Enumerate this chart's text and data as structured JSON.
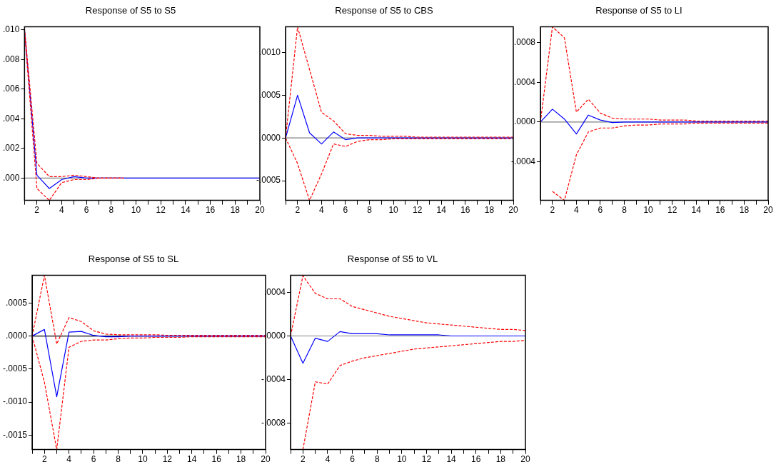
{
  "chart_data": [
    {
      "type": "line",
      "title": "Response of S5 to S5",
      "x": [
        1,
        2,
        3,
        4,
        5,
        6,
        7,
        8,
        9,
        10,
        11,
        12,
        13,
        14,
        15,
        16,
        17,
        18,
        19,
        20
      ],
      "xlim": [
        1,
        20
      ],
      "xticks": [
        {
          "value": 1,
          "label": null
        },
        2,
        {
          "value": 3,
          "label": null
        },
        4,
        {
          "value": 5,
          "label": null
        },
        6,
        {
          "value": 7,
          "label": null
        },
        8,
        {
          "value": 9,
          "label": null
        },
        10,
        {
          "value": 11,
          "label": null
        },
        12,
        {
          "value": 13,
          "label": null
        },
        14,
        {
          "value": 15,
          "label": null
        },
        16,
        {
          "value": 17,
          "label": null
        },
        18,
        {
          "value": 19,
          "label": null
        },
        20
      ],
      "ylim": [
        -0.0015,
        0.0102
      ],
      "yticks": [
        {
          "value": 0,
          "label": ".000"
        },
        {
          "value": 0.002,
          "label": ".002"
        },
        {
          "value": 0.004,
          "label": ".004"
        },
        {
          "value": 0.006,
          "label": ".006"
        },
        {
          "value": 0.008,
          "label": ".008"
        },
        {
          "value": 0.01,
          "label": ".010"
        }
      ],
      "grid": false,
      "marker": "none",
      "ref_lines": [
        {
          "axis": "y",
          "value": 0,
          "color": "#808080"
        }
      ],
      "series": [
        {
          "color": "#0000ff",
          "line_style": "solid",
          "values": [
            0.01,
            0.0002,
            -0.0007,
            -0.0001,
            0.0001,
            0,
            0,
            0,
            0,
            0,
            0,
            0,
            0,
            0,
            0,
            0,
            0,
            0,
            0,
            0
          ]
        },
        {
          "color": "#ff0000",
          "line_style": "dashed",
          "values": [
            0.0101,
            0.001,
            0.0001,
            0.0001,
            0.0002,
            0.0001,
            0,
            0,
            0,
            null,
            null,
            null,
            null,
            null,
            null,
            null,
            null,
            null,
            null,
            null
          ]
        },
        {
          "color": "#ff0000",
          "line_style": "dashed",
          "values": [
            0.0099,
            -0.0007,
            -0.0015,
            -0.0003,
            -0.0001,
            -0.0001,
            0,
            0,
            0,
            null,
            null,
            null,
            null,
            null,
            null,
            null,
            null,
            null,
            null,
            null
          ]
        }
      ]
    },
    {
      "type": "line",
      "title": "Response of S5 to CBS",
      "x": [
        1,
        2,
        3,
        4,
        5,
        6,
        7,
        8,
        9,
        10,
        11,
        12,
        13,
        14,
        15,
        16,
        17,
        18,
        19,
        20
      ],
      "xlim": [
        1,
        20
      ],
      "xticks": [
        {
          "value": 1,
          "label": null
        },
        2,
        {
          "value": 3,
          "label": null
        },
        4,
        {
          "value": 5,
          "label": null
        },
        6,
        {
          "value": 7,
          "label": null
        },
        8,
        {
          "value": 9,
          "label": null
        },
        10,
        {
          "value": 11,
          "label": null
        },
        12,
        {
          "value": 13,
          "label": null
        },
        14,
        {
          "value": 15,
          "label": null
        },
        16,
        {
          "value": 17,
          "label": null
        },
        18,
        {
          "value": 19,
          "label": null
        },
        20
      ],
      "ylim": [
        -0.00073,
        0.0013
      ],
      "yticks": [
        {
          "value": -0.0005,
          "label": "-.0005"
        },
        {
          "value": 0,
          "label": ".0000"
        },
        {
          "value": 0.0005,
          "label": ".0005"
        },
        {
          "value": 0.001,
          "label": ".0010"
        }
      ],
      "grid": false,
      "marker": "none",
      "ref_lines": [
        {
          "axis": "y",
          "value": 0,
          "color": "#808080"
        }
      ],
      "series": [
        {
          "color": "#0000ff",
          "line_style": "solid",
          "values": [
            0,
            0.0005,
            6e-05,
            -7e-05,
            7e-05,
            -2e-05,
            0,
            0,
            0,
            0,
            0,
            0,
            0,
            0,
            0,
            0,
            0,
            0,
            0,
            0
          ]
        },
        {
          "color": "#ff0000",
          "line_style": "dashed",
          "values": [
            0,
            0.0013,
            0.0008,
            0.0003,
            0.0002,
            5e-05,
            3e-05,
            3e-05,
            2e-05,
            2e-05,
            2e-05,
            1e-05,
            1e-05,
            1e-05,
            1e-05,
            1e-05,
            1e-05,
            1e-05,
            1e-05,
            1e-05
          ]
        },
        {
          "color": "#ff0000",
          "line_style": "dashed",
          "values": [
            0,
            -0.0003,
            -0.00073,
            -0.00042,
            -7e-05,
            -0.0001,
            -4e-05,
            -2e-05,
            -2e-05,
            -1e-05,
            -1e-05,
            -1e-05,
            -1e-05,
            -1e-05,
            -1e-05,
            -1e-05,
            -1e-05,
            -1e-05,
            -1e-05,
            -1e-05
          ]
        }
      ]
    },
    {
      "type": "line",
      "title": "Response of S5 to LI",
      "x": [
        1,
        2,
        3,
        4,
        5,
        6,
        7,
        8,
        9,
        10,
        11,
        12,
        13,
        14,
        15,
        16,
        17,
        18,
        19,
        20
      ],
      "xlim": [
        1,
        20
      ],
      "xticks": [
        {
          "value": 1,
          "label": null
        },
        2,
        {
          "value": 3,
          "label": null
        },
        4,
        {
          "value": 5,
          "label": null
        },
        6,
        {
          "value": 7,
          "label": null
        },
        8,
        {
          "value": 9,
          "label": null
        },
        10,
        {
          "value": 11,
          "label": null
        },
        12,
        {
          "value": 13,
          "label": null
        },
        14,
        {
          "value": 15,
          "label": null
        },
        16,
        {
          "value": 17,
          "label": null
        },
        18,
        {
          "value": 19,
          "label": null
        },
        20
      ],
      "ylim": [
        -0.00079,
        0.00096
      ],
      "yticks": [
        {
          "value": -0.0004,
          "label": "-.0004"
        },
        {
          "value": 0,
          "label": ".0000"
        },
        {
          "value": 0.0004,
          "label": ".0004"
        },
        {
          "value": 0.0008,
          "label": ".0008"
        }
      ],
      "grid": false,
      "marker": "none",
      "ref_lines": [
        {
          "axis": "y",
          "value": 0,
          "color": "#808080"
        }
      ],
      "series": [
        {
          "color": "#0000ff",
          "line_style": "solid",
          "values": [
            0,
            0.00013,
            3e-05,
            -0.00012,
            7e-05,
            2e-05,
            -5e-06,
            0,
            0,
            0,
            0,
            0,
            0,
            0,
            0,
            0,
            0,
            0,
            0,
            0
          ]
        },
        {
          "color": "#ff0000",
          "line_style": "dashed",
          "values": [
            0,
            0.00096,
            0.00085,
            0.0001,
            0.00023,
            9e-05,
            4e-05,
            3e-05,
            3e-05,
            3e-05,
            2e-05,
            2e-05,
            2e-05,
            1e-05,
            1e-05,
            1e-05,
            1e-05,
            1e-05,
            1e-05,
            1e-05
          ]
        },
        {
          "color": "#ff0000",
          "line_style": "dashed",
          "values": [
            null,
            -0.0007,
            -0.00079,
            -0.00033,
            -0.0001,
            -6e-05,
            -6e-05,
            -4e-05,
            -3e-05,
            -3e-05,
            -2e-05,
            -2e-05,
            -2e-05,
            -1e-05,
            -1e-05,
            -1e-05,
            -1e-05,
            -1e-05,
            -1e-05,
            -1e-05
          ]
        }
      ]
    },
    {
      "type": "line",
      "title": "Response of S5 to SL",
      "x": [
        1,
        2,
        3,
        4,
        5,
        6,
        7,
        8,
        9,
        10,
        11,
        12,
        13,
        14,
        15,
        16,
        17,
        18,
        19,
        20
      ],
      "xlim": [
        1,
        20
      ],
      "xticks": [
        {
          "value": 1,
          "label": null
        },
        2,
        {
          "value": 3,
          "label": null
        },
        4,
        {
          "value": 5,
          "label": null
        },
        6,
        {
          "value": 7,
          "label": null
        },
        8,
        {
          "value": 9,
          "label": null
        },
        10,
        {
          "value": 11,
          "label": null
        },
        12,
        {
          "value": 13,
          "label": null
        },
        14,
        {
          "value": 15,
          "label": null
        },
        16,
        {
          "value": 17,
          "label": null
        },
        18,
        {
          "value": 19,
          "label": null
        },
        20
      ],
      "ylim": [
        -0.00172,
        0.00092
      ],
      "yticks": [
        {
          "value": -0.0015,
          "label": "-.0015"
        },
        {
          "value": -0.001,
          "label": "-.0010"
        },
        {
          "value": -0.0005,
          "label": "-.0005"
        },
        {
          "value": 0,
          "label": ".0000"
        },
        {
          "value": 0.0005,
          "label": ".0005"
        }
      ],
      "grid": false,
      "marker": "none",
      "ref_lines": [
        {
          "axis": "y",
          "value": 0,
          "color": "#000000"
        }
      ],
      "series": [
        {
          "color": "#0000ff",
          "line_style": "solid",
          "values": [
            0,
            0.0001,
            -0.00092,
            6e-05,
            7e-05,
            1e-05,
            -1e-05,
            -1e-05,
            0,
            0,
            0,
            0,
            0,
            0,
            0,
            0,
            0,
            0,
            0,
            0
          ]
        },
        {
          "color": "#ff0000",
          "line_style": "dashed",
          "values": [
            0,
            0.00092,
            -0.00012,
            0.00028,
            0.00022,
            8e-05,
            3e-05,
            2e-05,
            2e-05,
            2e-05,
            2e-05,
            1e-05,
            1e-05,
            1e-05,
            1e-05,
            1e-05,
            1e-05,
            1e-05,
            1e-05,
            1e-05
          ]
        },
        {
          "color": "#ff0000",
          "line_style": "dashed",
          "values": [
            0,
            -0.0007,
            -0.00172,
            -0.00017,
            -8e-05,
            -6e-05,
            -6e-05,
            -4e-05,
            -3e-05,
            -3e-05,
            -2e-05,
            -2e-05,
            -2e-05,
            -1e-05,
            -1e-05,
            -1e-05,
            -1e-05,
            -1e-05,
            -1e-05,
            -1e-05
          ]
        }
      ]
    },
    {
      "type": "line",
      "title": "Response of S5 to VL",
      "x": [
        1,
        2,
        3,
        4,
        5,
        6,
        7,
        8,
        9,
        10,
        11,
        12,
        13,
        14,
        15,
        16,
        17,
        18,
        19,
        20
      ],
      "xlim": [
        1,
        20
      ],
      "xticks": [
        {
          "value": 1,
          "label": null
        },
        2,
        {
          "value": 3,
          "label": null
        },
        4,
        {
          "value": 5,
          "label": null
        },
        6,
        {
          "value": 7,
          "label": null
        },
        8,
        {
          "value": 9,
          "label": null
        },
        10,
        {
          "value": 11,
          "label": null
        },
        12,
        {
          "value": 13,
          "label": null
        },
        14,
        {
          "value": 15,
          "label": null
        },
        16,
        {
          "value": 17,
          "label": null
        },
        18,
        {
          "value": 19,
          "label": null
        },
        20
      ],
      "ylim": [
        -0.00104,
        0.000555
      ],
      "yticks": [
        {
          "value": -0.0008,
          "label": "-.0008"
        },
        {
          "value": -0.0004,
          "label": "-.0004"
        },
        {
          "value": 0,
          "label": ".0000"
        },
        {
          "value": 0.0004,
          "label": ".0004"
        }
      ],
      "grid": false,
      "marker": "none",
      "ref_lines": [
        {
          "axis": "y",
          "value": 0,
          "color": "#808080"
        }
      ],
      "series": [
        {
          "color": "#0000ff",
          "line_style": "solid",
          "values": [
            0,
            -0.00025,
            -2e-05,
            -5e-05,
            4e-05,
            2e-05,
            2e-05,
            2e-05,
            1e-05,
            1e-05,
            1e-05,
            1e-05,
            1e-05,
            0,
            0,
            0,
            0,
            0,
            0,
            0
          ]
        },
        {
          "color": "#ff0000",
          "line_style": "dashed",
          "values": [
            0,
            0.00055,
            0.00039,
            0.00034,
            0.00034,
            0.00027,
            0.00024,
            0.00021,
            0.00018,
            0.00016,
            0.00014,
            0.00012,
            0.00011,
            0.0001,
            9e-05,
            8e-05,
            7e-05,
            6e-05,
            6e-05,
            5e-05
          ]
        },
        {
          "color": "#ff0000",
          "line_style": "dashed",
          "values": [
            null,
            -0.00104,
            -0.00042,
            -0.00044,
            -0.00027,
            -0.00023,
            -0.0002,
            -0.00018,
            -0.00016,
            -0.00014,
            -0.00012,
            -0.00011,
            -0.0001,
            -9e-05,
            -8e-05,
            -7e-05,
            -6e-05,
            -5e-05,
            -5e-05,
            -4e-05
          ]
        }
      ]
    }
  ]
}
